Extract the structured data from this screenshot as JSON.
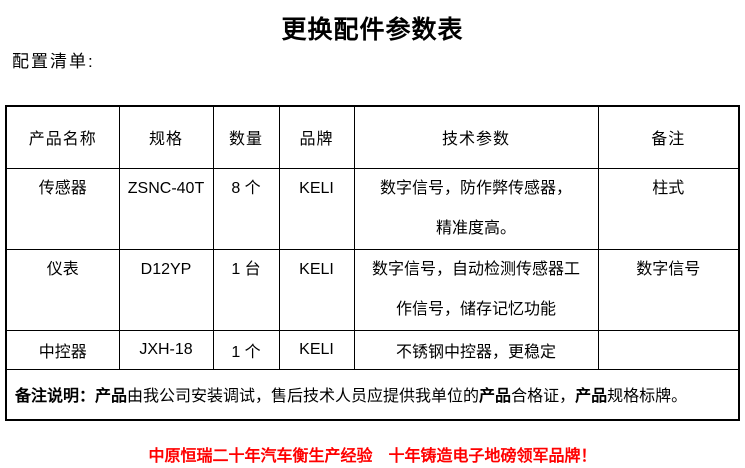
{
  "title": "更换配件参数表",
  "subtitle": "配置清单:",
  "colors": {
    "text": "#000000",
    "border": "#000000",
    "slogan": "#ff0000",
    "background": "#ffffff"
  },
  "table": {
    "headers": [
      "产品名称",
      "规格",
      "数量",
      "品牌",
      "技术参数",
      "备注"
    ],
    "rows": [
      {
        "name": "传感器",
        "spec": "ZSNC-40T",
        "qty": "8 个",
        "brand": "KELI",
        "params": [
          "数字信号，防作弊传感器，",
          "精准度高。"
        ],
        "note": "柱式"
      },
      {
        "name": "仪表",
        "spec": "D12YP",
        "qty": "1 台",
        "brand": "KELI",
        "params": [
          "数字信号，自动检测传感器工",
          "作信号，储存记忆功能"
        ],
        "note": "数字信号"
      },
      {
        "name": "中控器",
        "spec": "JXH-18",
        "qty": "1 个",
        "brand": "KELI",
        "params": [
          "不锈钢中控器，更稳定",
          ""
        ],
        "note": ""
      }
    ],
    "remark_segments": [
      {
        "text": "备注说明：",
        "bold": true
      },
      {
        "text": "产品",
        "bold": true
      },
      {
        "text": "由我公司安装调试，售后技术人员应提供我单位的",
        "bold": false
      },
      {
        "text": "产品",
        "bold": true
      },
      {
        "text": "合格证，",
        "bold": false
      },
      {
        "text": "产品",
        "bold": true
      },
      {
        "text": "规格标牌。",
        "bold": false
      }
    ]
  },
  "footer": {
    "slogan": "中原恒瑞二十年汽车衡生产经验　十年铸造电子地磅领军品牌！"
  }
}
